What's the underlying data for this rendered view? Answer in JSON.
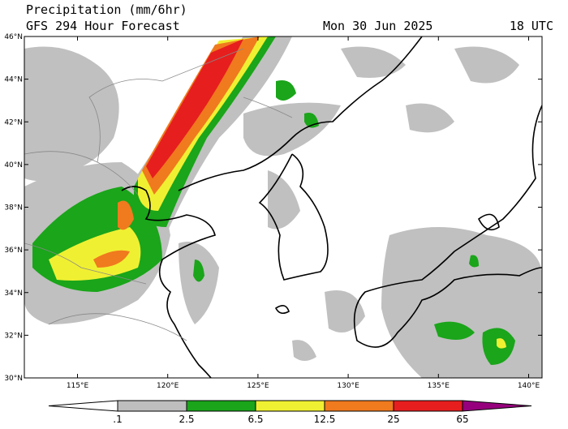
{
  "header": {
    "title": "Precipitation (mm/6hr)",
    "subtitle": "GFS 294 Hour Forecast",
    "date": "Mon 30 Jun 2025",
    "time": "18 UTC"
  },
  "map": {
    "lat_labels": [
      "46°N",
      "44°N",
      "42°N",
      "40°N",
      "38°N",
      "36°N",
      "34°N",
      "32°N",
      "30°N"
    ],
    "lon_labels": [
      "115°E",
      "120°E",
      "125°E",
      "130°E",
      "135°E",
      "140°E"
    ]
  },
  "colorbar": {
    "labels": [
      ".1",
      "2.5",
      "6.5",
      "12.5",
      "25",
      "65"
    ],
    "colors": [
      "#ffffff",
      "#bebebe",
      "#1aa51a",
      "#f0f032",
      "#f07a1e",
      "#e61e1e",
      "#96007d"
    ]
  }
}
